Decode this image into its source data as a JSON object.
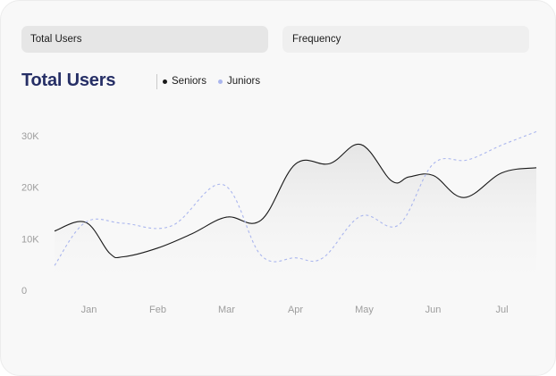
{
  "tabs": [
    {
      "label": "Total Users",
      "active": true
    },
    {
      "label": "Frequency",
      "active": false
    }
  ],
  "colors": {
    "title": "#262f66",
    "seniors": "#1a1a1a",
    "juniors": "#aab6ee",
    "tick": "#9d9d9d"
  },
  "chart_data": {
    "type": "line",
    "title": "Total Users",
    "xlabel": "",
    "ylabel": "",
    "categories": [
      "Jan",
      "Feb",
      "Mar",
      "Apr",
      "May",
      "Jun",
      "Jul"
    ],
    "y_ticks": [
      "0",
      "10K",
      "20K",
      "30K"
    ],
    "ylim": [
      0,
      30000
    ],
    "x_range": [
      -0.5,
      6.5
    ],
    "grid": false,
    "legend_position": "top",
    "series": [
      {
        "name": "Seniors",
        "style": "solid",
        "x": [
          -0.5,
          -0.05,
          0.3,
          0.5,
          1.0,
          1.5,
          2.0,
          2.5,
          3.0,
          3.5,
          3.95,
          4.4,
          4.65,
          5.0,
          5.45,
          6.0,
          6.5
        ],
        "y": [
          11500,
          13200,
          7200,
          6500,
          8200,
          11000,
          14200,
          13600,
          24500,
          24600,
          28300,
          21200,
          22000,
          22300,
          18000,
          22800,
          23800
        ]
      },
      {
        "name": "Juniors",
        "style": "dashed",
        "x": [
          -0.5,
          -0.05,
          0.5,
          1.2,
          1.95,
          2.5,
          3.0,
          3.4,
          3.95,
          4.5,
          5.0,
          5.5,
          6.0,
          6.5
        ],
        "y": [
          4800,
          13200,
          13000,
          12500,
          20500,
          6800,
          6300,
          6300,
          14400,
          12700,
          24500,
          25300,
          28200,
          30800
        ]
      }
    ]
  }
}
